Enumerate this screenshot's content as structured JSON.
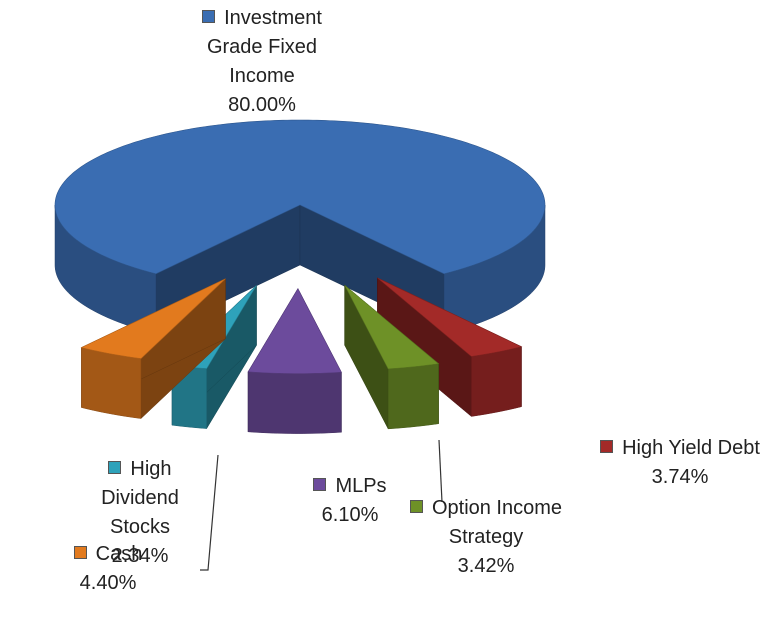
{
  "chart_data": {
    "type": "pie",
    "categories": [
      "Investment Grade Fixed Income",
      "High Yield Debt",
      "Option Income Strategy",
      "MLPs",
      "High Dividend Stocks",
      "Cash"
    ],
    "values": [
      80,
      3.74,
      3.42,
      6.1,
      2.34,
      4.4
    ],
    "value_labels": [
      "80.00%",
      "3.74%",
      "3.42%",
      "6.10%",
      "2.34%",
      "4.40%"
    ],
    "colors": [
      "#3a6db2",
      "#a32a28",
      "#6e9127",
      "#6c4b9c",
      "#2ea2ba",
      "#e27a1e"
    ]
  }
}
